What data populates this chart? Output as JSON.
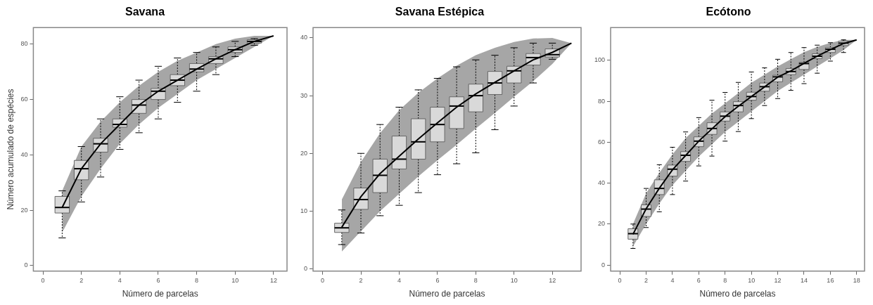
{
  "chart_data": [
    {
      "type": "box",
      "title": "Savana",
      "xlabel": "Número de parcelas",
      "ylabel": "Número acumulado de espécies",
      "x": [
        1,
        2,
        3,
        4,
        5,
        6,
        7,
        8,
        9,
        10,
        11,
        12
      ],
      "xlim": [
        -0.5,
        12.7
      ],
      "xticks": [
        0,
        2,
        4,
        6,
        8,
        10,
        12
      ],
      "ylim": [
        -2,
        86
      ],
      "yticks": [
        0,
        20,
        40,
        60,
        80
      ],
      "legend": false,
      "series": [
        {
          "type": "line",
          "color": "#000000",
          "values": [
            21,
            35,
            44,
            51,
            58,
            63,
            67,
            71,
            74.7,
            78,
            81,
            83
          ],
          "lower": [
            12,
            25,
            35,
            44,
            51,
            57,
            62,
            67,
            71,
            75,
            79,
            83
          ],
          "upper": [
            27,
            43,
            52,
            59,
            65,
            70,
            74,
            77,
            80,
            82,
            83,
            83
          ]
        },
        {
          "type": "box",
          "color": "#d9d9d9",
          "x": [
            1,
            2,
            3,
            4,
            5,
            6,
            7,
            8,
            9,
            10,
            11
          ],
          "boxes": [
            {
              "low": 10,
              "q1": 19,
              "median": 21,
              "q3": 25,
              "high": 27
            },
            {
              "low": 23,
              "q1": 31,
              "median": 35,
              "q3": 38,
              "high": 43
            },
            {
              "low": 32,
              "q1": 41,
              "median": 44,
              "q3": 46,
              "high": 53
            },
            {
              "low": 42,
              "q1": 50,
              "median": 51,
              "q3": 53,
              "high": 61
            },
            {
              "low": 48,
              "q1": 55,
              "median": 58,
              "q3": 60,
              "high": 67
            },
            {
              "low": 53,
              "q1": 60,
              "median": 63,
              "q3": 64,
              "high": 72
            },
            {
              "low": 59,
              "q1": 65,
              "median": 67,
              "q3": 69,
              "high": 75
            },
            {
              "low": 63,
              "q1": 70,
              "median": 71,
              "q3": 73,
              "high": 77
            },
            {
              "low": 69,
              "q1": 73,
              "median": 74.7,
              "q3": 75.5,
              "high": 79
            },
            {
              "low": 75.5,
              "q1": 77,
              "median": 78,
              "q3": 79,
              "high": 81
            },
            {
              "low": 79.6,
              "q1": 80.4,
              "median": 81,
              "q3": 81.6,
              "high": 82
            }
          ]
        }
      ]
    },
    {
      "type": "box",
      "title": "Savana Estépica",
      "xlabel": "Número de parcelas",
      "x": [
        1,
        2,
        3,
        4,
        5,
        6,
        7,
        8,
        9,
        10,
        11,
        12,
        13
      ],
      "xlim": [
        -0.5,
        13.5
      ],
      "xticks": [
        0,
        2,
        4,
        6,
        8,
        10,
        12
      ],
      "ylim": [
        -0.4,
        41.8
      ],
      "yticks": [
        0,
        10,
        20,
        30,
        40
      ],
      "legend": false,
      "series": [
        {
          "type": "line",
          "color": "#000000",
          "values": [
            7.2,
            12.5,
            16.5,
            19.5,
            22.5,
            25.3,
            28,
            30.3,
            32.3,
            34.3,
            36.2,
            37.5,
            39.1
          ],
          "lower": [
            3,
            6.5,
            10,
            13,
            16,
            18.8,
            21.5,
            24.3,
            27,
            29.8,
            32.5,
            35.5,
            39.1
          ],
          "upper": [
            12,
            18.5,
            23.5,
            27.5,
            30.5,
            33,
            35.2,
            37,
            38.3,
            39.3,
            39.9,
            40,
            39.1
          ]
        },
        {
          "type": "box",
          "color": "#d9d9d9",
          "x": [
            1,
            2,
            3,
            4,
            5,
            6,
            7,
            8,
            9,
            10,
            11,
            12
          ],
          "boxes": [
            {
              "low": 4.2,
              "q1": 6.3,
              "median": 7.1,
              "q3": 7.9,
              "high": 10.2
            },
            {
              "low": 6.2,
              "q1": 10.3,
              "median": 12,
              "q3": 14,
              "high": 20
            },
            {
              "low": 9.2,
              "q1": 13.2,
              "median": 16.2,
              "q3": 19,
              "high": 25
            },
            {
              "low": 11,
              "q1": 17.3,
              "median": 19,
              "q3": 23,
              "high": 28
            },
            {
              "low": 13.2,
              "q1": 19,
              "median": 22,
              "q3": 26,
              "high": 31
            },
            {
              "low": 16.3,
              "q1": 22,
              "median": 25,
              "q3": 28,
              "high": 33
            },
            {
              "low": 18.2,
              "q1": 24.3,
              "median": 28.2,
              "q3": 29.8,
              "high": 35
            },
            {
              "low": 20.1,
              "q1": 27.2,
              "median": 30,
              "q3": 32,
              "high": 36.2
            },
            {
              "low": 24.1,
              "q1": 30.2,
              "median": 32.2,
              "q3": 34.2,
              "high": 37
            },
            {
              "low": 28.2,
              "q1": 32.2,
              "median": 34.3,
              "q3": 35.1,
              "high": 38.3
            },
            {
              "low": 32.2,
              "q1": 35.3,
              "median": 36.6,
              "q3": 37.3,
              "high": 39.1
            },
            {
              "low": 36.3,
              "q1": 36.7,
              "median": 37.1,
              "q3": 38.1,
              "high": 39.1
            }
          ]
        }
      ]
    },
    {
      "type": "box",
      "title": "Ecótono",
      "xlabel": "Número de parcelas",
      "x": [
        1,
        2,
        3,
        4,
        5,
        6,
        7,
        8,
        9,
        10,
        11,
        12,
        13,
        14,
        15,
        16,
        17,
        18
      ],
      "xlim": [
        -0.7,
        18.6
      ],
      "xticks": [
        0,
        2,
        4,
        6,
        8,
        10,
        12,
        14,
        16,
        18
      ],
      "ylim": [
        -3,
        116
      ],
      "yticks": [
        0,
        20,
        40,
        60,
        80,
        100
      ],
      "legend": false,
      "series": [
        {
          "type": "line",
          "color": "#000000",
          "values": [
            15,
            27.5,
            37.5,
            46.5,
            53.5,
            60.5,
            66.5,
            72.5,
            77.5,
            82.3,
            87,
            91.8,
            94.8,
            98.5,
            102,
            105.2,
            108.2,
            110
          ],
          "lower": [
            9,
            20,
            30,
            39,
            46,
            53,
            59,
            65,
            70,
            75,
            80,
            85,
            89,
            93,
            97,
            101,
            105,
            110
          ],
          "upper": [
            20,
            35,
            45,
            54,
            62,
            68,
            74,
            79,
            84,
            89,
            93,
            97,
            100.5,
            104,
            106.5,
            108.5,
            110,
            110
          ]
        },
        {
          "type": "box",
          "color": "#d9d9d9",
          "x": [
            1,
            2,
            3,
            4,
            5,
            6,
            7,
            8,
            9,
            10,
            11,
            12,
            13,
            14,
            15,
            16,
            17
          ],
          "boxes": [
            {
              "low": 8.1,
              "q1": 12.6,
              "median": 15.3,
              "q3": 17.7,
              "high": 20
            },
            {
              "low": 18.3,
              "q1": 23.7,
              "median": 27.3,
              "q3": 29.4,
              "high": 37.4
            },
            {
              "low": 26,
              "q1": 34.4,
              "median": 37.4,
              "q3": 41.6,
              "high": 49
            },
            {
              "low": 34.4,
              "q1": 43.4,
              "median": 46.8,
              "q3": 48.8,
              "high": 57.5
            },
            {
              "low": 41,
              "q1": 50.6,
              "median": 53.6,
              "q3": 55.4,
              "high": 65
            },
            {
              "low": 48.4,
              "q1": 57.8,
              "median": 60.5,
              "q3": 62.6,
              "high": 72
            },
            {
              "low": 53.2,
              "q1": 63.8,
              "median": 66.7,
              "q3": 69.5,
              "high": 80.5
            },
            {
              "low": 60.5,
              "q1": 70.3,
              "median": 72.7,
              "q3": 74.8,
              "high": 84.3
            },
            {
              "low": 65.2,
              "q1": 74.8,
              "median": 77.9,
              "q3": 79.8,
              "high": 89.2
            },
            {
              "low": 71.5,
              "q1": 80.5,
              "median": 82.3,
              "q3": 84.4,
              "high": 94.3
            },
            {
              "low": 77.9,
              "q1": 84.9,
              "median": 87.1,
              "q3": 88.9,
              "high": 96.3
            },
            {
              "low": 81.3,
              "q1": 89.5,
              "median": 91.9,
              "q3": 92.7,
              "high": 100.5
            },
            {
              "low": 85.3,
              "q1": 93,
              "median": 94.5,
              "q3": 96,
              "high": 103.8
            },
            {
              "low": 88.6,
              "q1": 95.5,
              "median": 98.4,
              "q3": 99,
              "high": 106.2
            },
            {
              "low": 93.7,
              "q1": 100.8,
              "median": 102,
              "q3": 103.2,
              "high": 107.4
            },
            {
              "low": 99.6,
              "q1": 103.8,
              "median": 105.4,
              "q3": 106.2,
              "high": 108.6
            },
            {
              "low": 103.8,
              "q1": 107.2,
              "median": 108.4,
              "q3": 109.4,
              "high": 110
            }
          ]
        }
      ]
    }
  ]
}
